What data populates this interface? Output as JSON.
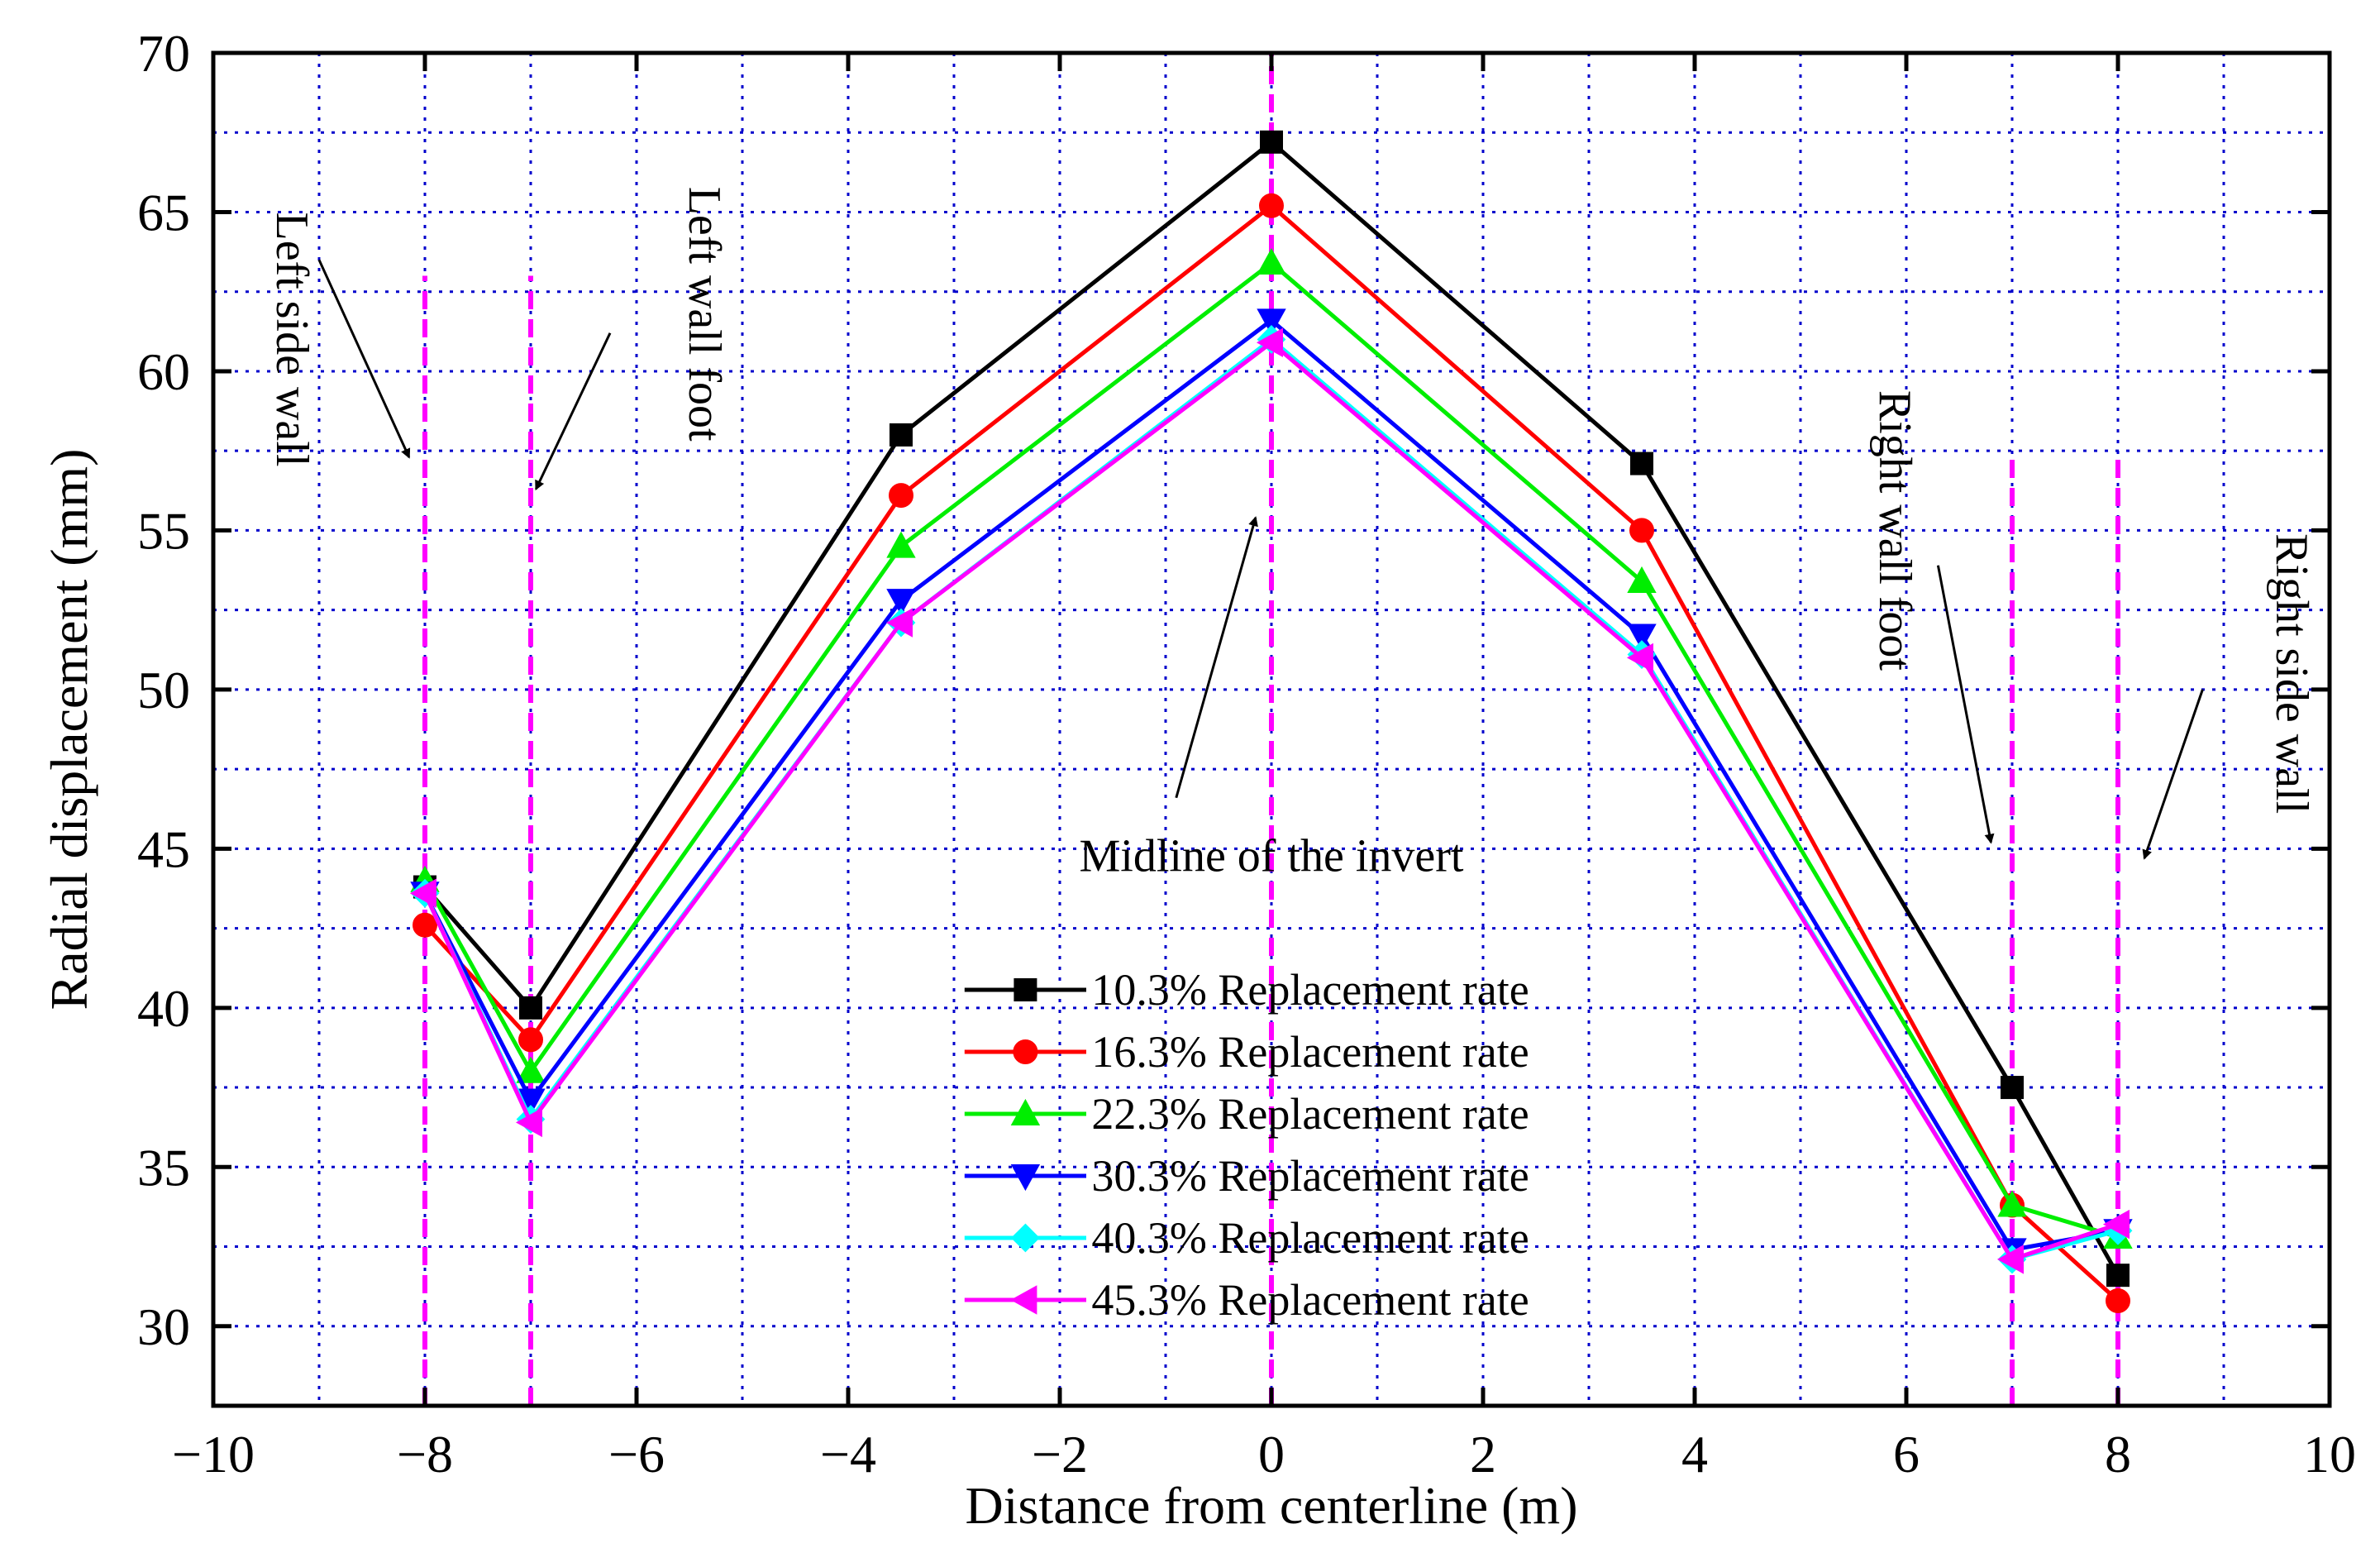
{
  "chart_data": {
    "type": "line",
    "title": "",
    "xlabel": "Distance from centerline (m)",
    "ylabel": "Radial displacement (mm)",
    "xlim": [
      -10,
      10
    ],
    "ylim": [
      27.5,
      70
    ],
    "xticks": [
      -10,
      -8,
      -6,
      -4,
      -2,
      0,
      2,
      4,
      6,
      8,
      10
    ],
    "yticks": [
      30,
      35,
      40,
      45,
      50,
      55,
      60,
      65,
      70
    ],
    "x_tick_labels": [
      "−10",
      "−8",
      "−6",
      "−4",
      "−2",
      "0",
      "2",
      "4",
      "6",
      "8",
      "10"
    ],
    "y_tick_labels": [
      "30",
      "35",
      "40",
      "45",
      "50",
      "55",
      "60",
      "65",
      "70"
    ],
    "grid": true,
    "grid_x": [
      -9,
      -8,
      -7,
      -6,
      -5,
      -4,
      -3,
      -2,
      -1,
      0,
      1,
      2,
      3,
      4,
      5,
      6,
      7,
      8,
      9
    ],
    "grid_y": [
      30,
      32.5,
      35,
      37.5,
      40,
      42.5,
      45,
      47.5,
      50,
      52.5,
      55,
      57.5,
      60,
      62.5,
      65,
      67.5
    ],
    "legend_position": "bottom-center",
    "x": [
      -8,
      -7,
      -3.5,
      0,
      3.5,
      7,
      8
    ],
    "series": [
      {
        "name": "10.3% Replacement rate",
        "color": "#000000",
        "marker": "square",
        "values": [
          43.8,
          40.0,
          58.0,
          67.2,
          57.1,
          37.5,
          31.6
        ]
      },
      {
        "name": "16.3% Replacement rate",
        "color": "#ff0000",
        "marker": "circle",
        "values": [
          42.6,
          39.0,
          56.1,
          65.2,
          55.0,
          33.8,
          30.8
        ]
      },
      {
        "name": "22.3% Replacement rate",
        "color": "#00ee00",
        "marker": "triangle-up",
        "values": [
          44.0,
          38.0,
          54.5,
          63.4,
          53.4,
          33.8,
          32.8
        ]
      },
      {
        "name": "30.3% Replacement rate",
        "color": "#0000ff",
        "marker": "triangle-down",
        "values": [
          43.6,
          37.1,
          52.8,
          61.6,
          51.7,
          32.4,
          33.0
        ]
      },
      {
        "name": "40.3% Replacement rate",
        "color": "#00ffff",
        "marker": "diamond",
        "values": [
          43.6,
          36.5,
          52.1,
          61.0,
          51.1,
          32.1,
          33.0
        ]
      },
      {
        "name": "45.3% Replacement rate",
        "color": "#ff00ff",
        "marker": "triangle-left",
        "values": [
          43.6,
          36.4,
          52.1,
          60.9,
          51.0,
          32.1,
          33.2
        ]
      }
    ],
    "reference_lines": [
      {
        "x": -8,
        "y_from": 27.5,
        "y_to": 63.0
      },
      {
        "x": -7,
        "y_from": 27.5,
        "y_to": 63.0
      },
      {
        "x": 0,
        "y_from": 27.5,
        "y_to": 70
      },
      {
        "x": 7,
        "y_from": 27.5,
        "y_to": 57.5
      },
      {
        "x": 8,
        "y_from": 27.5,
        "y_to": 57.5
      }
    ],
    "annotations": [
      {
        "text": "Left side wall",
        "rotation": 90,
        "x": -9.4,
        "y": 61.0,
        "arrow_from": [
          -9.0,
          63.5
        ],
        "arrow_to": [
          -8.15,
          57.3
        ]
      },
      {
        "text": "Left wall foot",
        "rotation": 90,
        "x": -5.5,
        "y": 61.8,
        "arrow_from": [
          -6.25,
          61.2
        ],
        "arrow_to": [
          -6.95,
          56.3
        ]
      },
      {
        "text": "Midline of the invert",
        "rotation": 0,
        "x": 0,
        "y": 44.3,
        "arrow_from": [
          -0.9,
          46.6
        ],
        "arrow_to": [
          -0.15,
          55.4
        ]
      },
      {
        "text": "Right wall foot",
        "rotation": 90,
        "x": 5.75,
        "y": 55.0,
        "arrow_from": [
          6.3,
          53.9
        ],
        "arrow_to": [
          6.8,
          45.2
        ]
      },
      {
        "text": "Right side wall",
        "rotation": 90,
        "x": 9.5,
        "y": 50.5,
        "arrow_from": [
          8.8,
          50.0
        ],
        "arrow_to": [
          8.25,
          44.7
        ]
      }
    ],
    "reference_color": "#ff00ff",
    "grid_color": "#0000cc"
  }
}
